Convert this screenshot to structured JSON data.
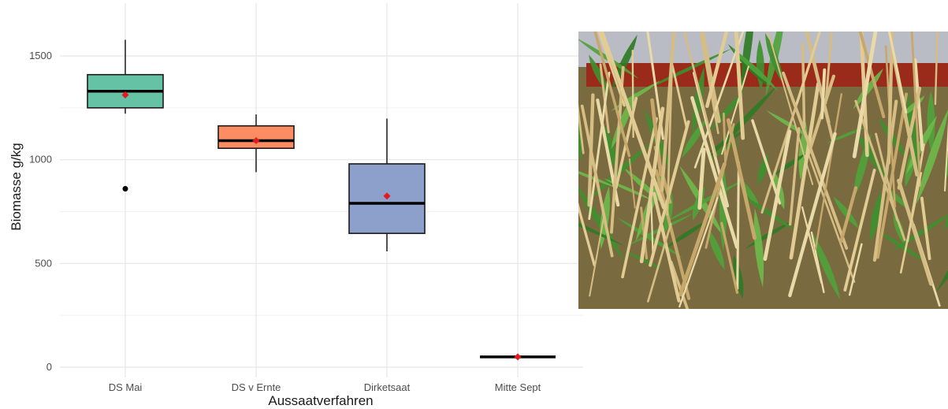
{
  "chart_data": {
    "type": "box",
    "xlabel": "Aussaatverfahren",
    "ylabel": "Biomasse g/kg",
    "ylim": [
      -25,
      1680
    ],
    "yticks": [
      0,
      500,
      1000,
      1500
    ],
    "grid": true,
    "categories": [
      "DS Mai",
      "DS v Ernte",
      "Dirketsaat",
      "Mitte Sept"
    ],
    "boxes": [
      {
        "category": "DS Mai",
        "min": 1222,
        "q1": 1250,
        "median": 1330,
        "q3": 1410,
        "max": 1578,
        "mean": 1312,
        "outliers": [
          860
        ],
        "color": "#66c2a5"
      },
      {
        "category": "DS v Ernte",
        "min": 940,
        "q1": 1055,
        "median": 1092,
        "q3": 1163,
        "max": 1218,
        "mean": 1092,
        "outliers": [],
        "color": "#fc8d62"
      },
      {
        "category": "Dirketsaat",
        "min": 558,
        "q1": 645,
        "median": 790,
        "q3": 980,
        "max": 1198,
        "mean": 825,
        "outliers": [],
        "color": "#8da0cb"
      },
      {
        "category": "Mitte Sept",
        "min": 50,
        "q1": 50,
        "median": 50,
        "q3": 50,
        "max": 50,
        "mean": 50,
        "outliers": [],
        "color": "#e78ac3"
      }
    ],
    "mean_marker_color": "#e41a1c"
  },
  "photo": {
    "sky_color": "#b9bcc4",
    "tray_color": "#9a2a1a",
    "ground_color": "#7a6a40",
    "stubble_color": "#d6bd84",
    "leaf_color": "#3f8f2f"
  },
  "caption": {
    "text": ""
  }
}
